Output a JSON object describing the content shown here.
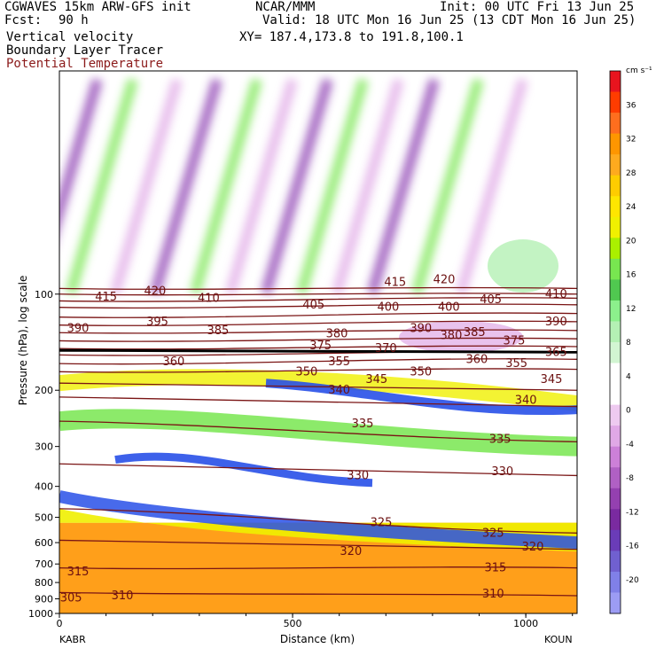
{
  "header": {
    "model": "CGWAVES 15km ARW-GFS init",
    "org": "NCAR/MMM",
    "init": "Init: 00 UTC Fri 13 Jun 25",
    "fcst_label": "Fcst:",
    "fcst_value": "90 h",
    "valid": "Valid: 18 UTC Mon 16 Jun 25 (13 CDT Mon 16 Jun 25)",
    "field1": "Vertical velocity",
    "field2": "Boundary Layer Tracer",
    "field3": "Potential Temperature",
    "xy": "XY= 187.4,173.8 to 191.8,100.1"
  },
  "colors": {
    "theta": "#7a1414",
    "tracer": "#000000"
  },
  "chart_data": {
    "type": "heatmap",
    "title": "",
    "xlabel": "Distance (km)",
    "ylabel": "Pressure (hPa), log scale",
    "x_range": [
      0,
      1110
    ],
    "y_range": [
      1000,
      20
    ],
    "y_scale": "log",
    "x_ticks": [
      0,
      500,
      1000
    ],
    "y_ticks": [
      100,
      200,
      300,
      400,
      500,
      600,
      700,
      800,
      900,
      1000
    ],
    "x_endpoints": [
      "KABR",
      "KOUN"
    ],
    "colorbar": {
      "unit": "cm s⁻¹",
      "ticks": [
        36,
        32,
        28,
        24,
        20,
        16,
        12,
        8,
        4,
        0,
        -4,
        -8,
        -12,
        -16,
        -20
      ],
      "colors": [
        "#e8141e",
        "#ff3c00",
        "#ff6e1e",
        "#ff9600",
        "#ffaa1e",
        "#ffcc00",
        "#ffe600",
        "#f0f000",
        "#aaf000",
        "#78e650",
        "#50c850",
        "#8cf08c",
        "#b4f0b4",
        "#d2f5d2",
        "#ffffff",
        "#ffffff",
        "#eecaf0",
        "#e0a8e6",
        "#cc80d8",
        "#b060c4",
        "#9440b0",
        "#7a2aa0",
        "#6a3cb8",
        "#7060d0",
        "#8080e8",
        "#9c9cf4"
      ]
    },
    "theta_contours": [
      {
        "label": "415",
        "x": 100,
        "p": 102
      },
      {
        "label": "420",
        "x": 205,
        "p": 98
      },
      {
        "label": "410",
        "x": 320,
        "p": 103
      },
      {
        "label": "415",
        "x": 720,
        "p": 92
      },
      {
        "label": "420",
        "x": 825,
        "p": 90
      },
      {
        "label": "405",
        "x": 545,
        "p": 108
      },
      {
        "label": "400",
        "x": 705,
        "p": 110
      },
      {
        "label": "400",
        "x": 835,
        "p": 110
      },
      {
        "label": "405",
        "x": 925,
        "p": 104
      },
      {
        "label": "410",
        "x": 1065,
        "p": 100
      },
      {
        "label": "390",
        "x": 40,
        "p": 128
      },
      {
        "label": "395",
        "x": 210,
        "p": 122
      },
      {
        "label": "385",
        "x": 340,
        "p": 130
      },
      {
        "label": "380",
        "x": 595,
        "p": 133
      },
      {
        "label": "390",
        "x": 775,
        "p": 128
      },
      {
        "label": "380",
        "x": 840,
        "p": 135
      },
      {
        "label": "385",
        "x": 890,
        "p": 132
      },
      {
        "label": "375",
        "x": 975,
        "p": 140
      },
      {
        "label": "390",
        "x": 1065,
        "p": 122
      },
      {
        "label": "375",
        "x": 560,
        "p": 145
      },
      {
        "label": "370",
        "x": 700,
        "p": 148
      },
      {
        "label": "365",
        "x": 1065,
        "p": 152
      },
      {
        "label": "360",
        "x": 245,
        "p": 163
      },
      {
        "label": "355",
        "x": 600,
        "p": 163
      },
      {
        "label": "360",
        "x": 895,
        "p": 160
      },
      {
        "label": "355",
        "x": 980,
        "p": 165
      },
      {
        "label": "350",
        "x": 530,
        "p": 175
      },
      {
        "label": "345",
        "x": 680,
        "p": 185
      },
      {
        "label": "350",
        "x": 775,
        "p": 175
      },
      {
        "label": "345",
        "x": 1055,
        "p": 185
      },
      {
        "label": "340",
        "x": 600,
        "p": 200
      },
      {
        "label": "340",
        "x": 1000,
        "p": 215
      },
      {
        "label": "335",
        "x": 650,
        "p": 255
      },
      {
        "label": "335",
        "x": 945,
        "p": 285
      },
      {
        "label": "330",
        "x": 640,
        "p": 370
      },
      {
        "label": "330",
        "x": 950,
        "p": 360
      },
      {
        "label": "325",
        "x": 690,
        "p": 520
      },
      {
        "label": "325",
        "x": 930,
        "p": 560
      },
      {
        "label": "320",
        "x": 625,
        "p": 640
      },
      {
        "label": "320",
        "x": 1015,
        "p": 620
      },
      {
        "label": "315",
        "x": 40,
        "p": 740
      },
      {
        "label": "315",
        "x": 935,
        "p": 720
      },
      {
        "label": "310",
        "x": 135,
        "p": 880
      },
      {
        "label": "310",
        "x": 930,
        "p": 870
      },
      {
        "label": "305",
        "x": 25,
        "p": 895
      }
    ]
  }
}
